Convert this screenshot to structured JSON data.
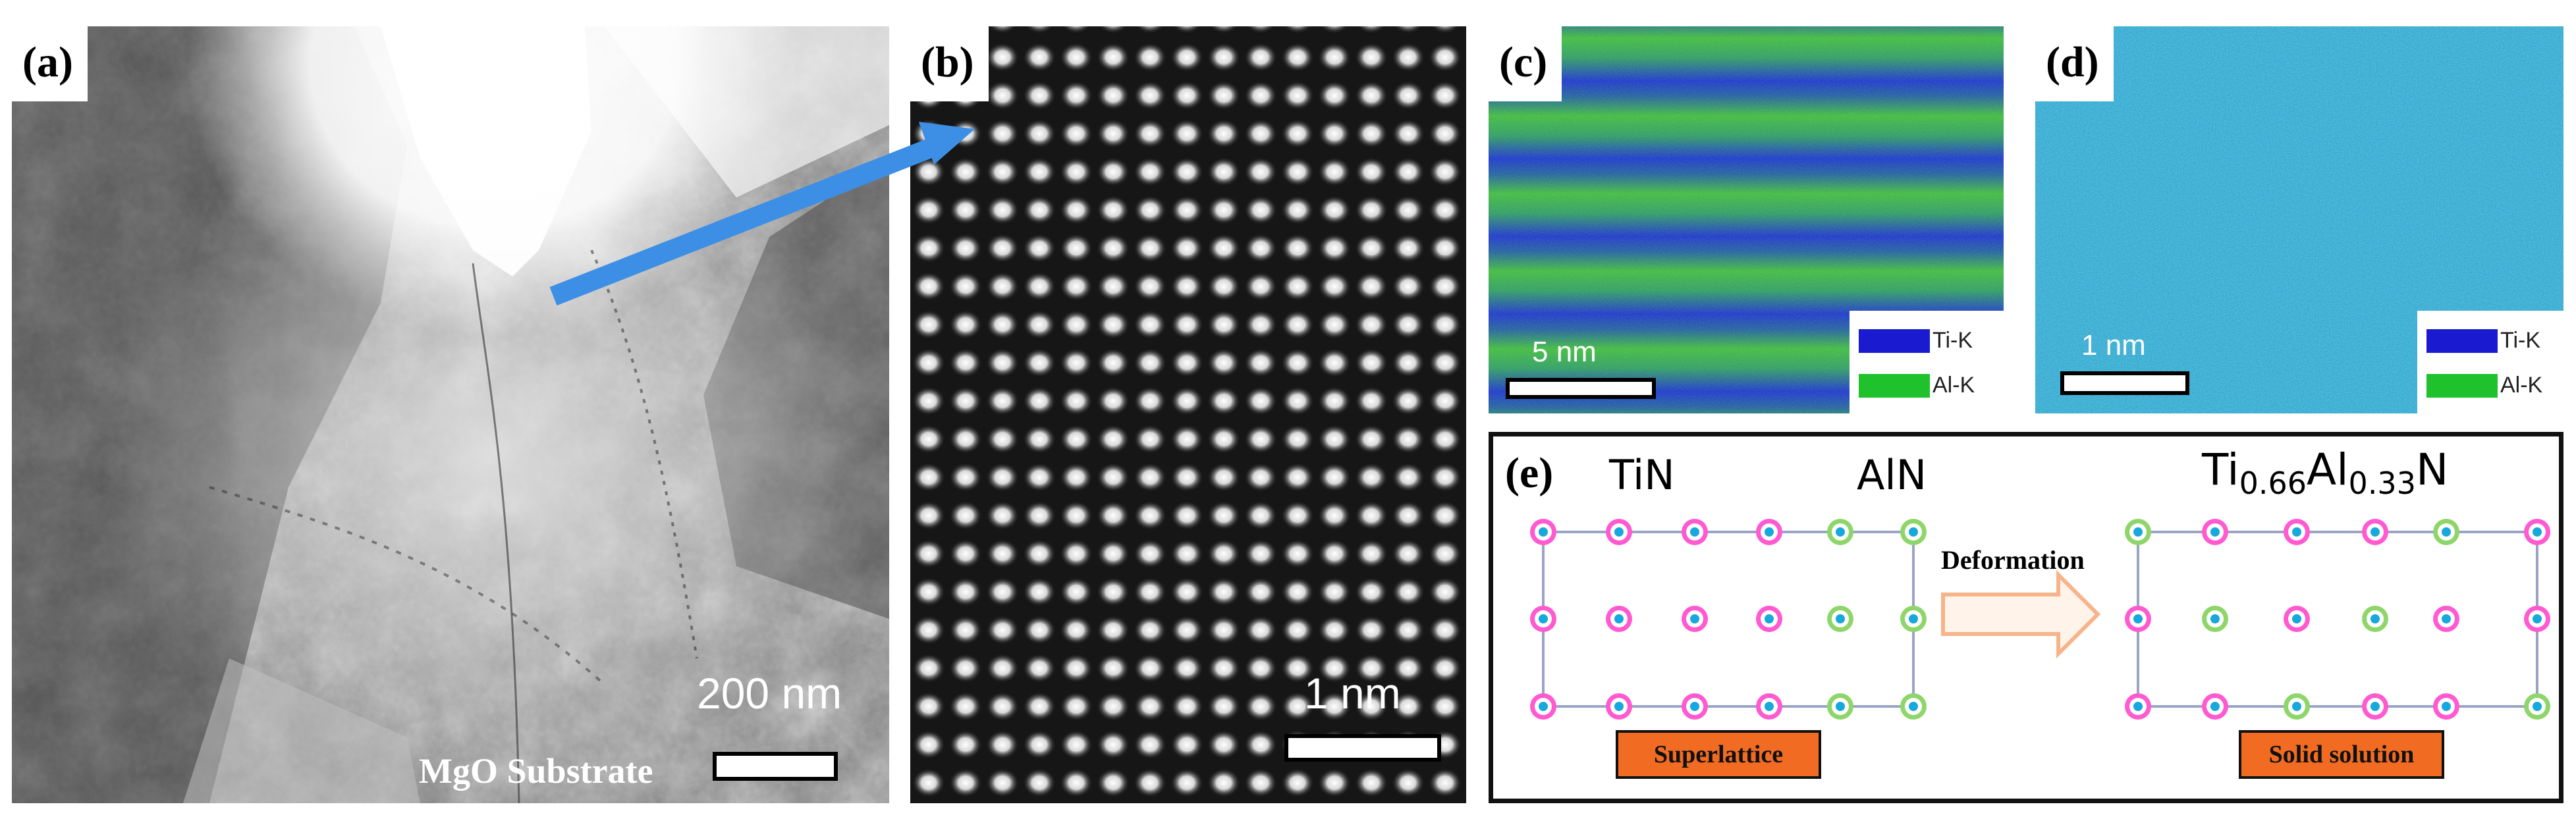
{
  "panel_a": {
    "label": "(a)",
    "scale_text": "200 nm",
    "substrate_text": "MgO Substrate"
  },
  "panel_b": {
    "label": "(b)",
    "scale_text": "1 nm"
  },
  "panel_c": {
    "label": "(c)",
    "scale_text": "5 nm",
    "legend": [
      {
        "name": "Ti-K",
        "color": "#1a1ad0"
      },
      {
        "name": "Al-K",
        "color": "#1fc22c"
      }
    ]
  },
  "panel_d": {
    "label": "(d)",
    "scale_text": "1 nm",
    "legend": [
      {
        "name": "Ti-K",
        "color": "#1a1ad0"
      },
      {
        "name": "Al-K",
        "color": "#1fc22c"
      }
    ]
  },
  "panel_e": {
    "label": "(e)",
    "tin_label": "TiN",
    "aln_label": "AlN",
    "solid_formula": {
      "ti": "Ti",
      "ti_sub": "0.66",
      "al": "Al",
      "al_sub": "0.33",
      "n": "N"
    },
    "arrow_label": "Deformation",
    "left_box": "Superlattice",
    "right_box": "Solid solution"
  },
  "colors": {
    "arrow_blue": "#3d8fe6",
    "ti_atom": "#ff5ad0",
    "al_atom": "#8fd66a",
    "center": "#17a8dc",
    "box_orange": "#f26b22",
    "lattice_line": "#9aa4c6"
  }
}
